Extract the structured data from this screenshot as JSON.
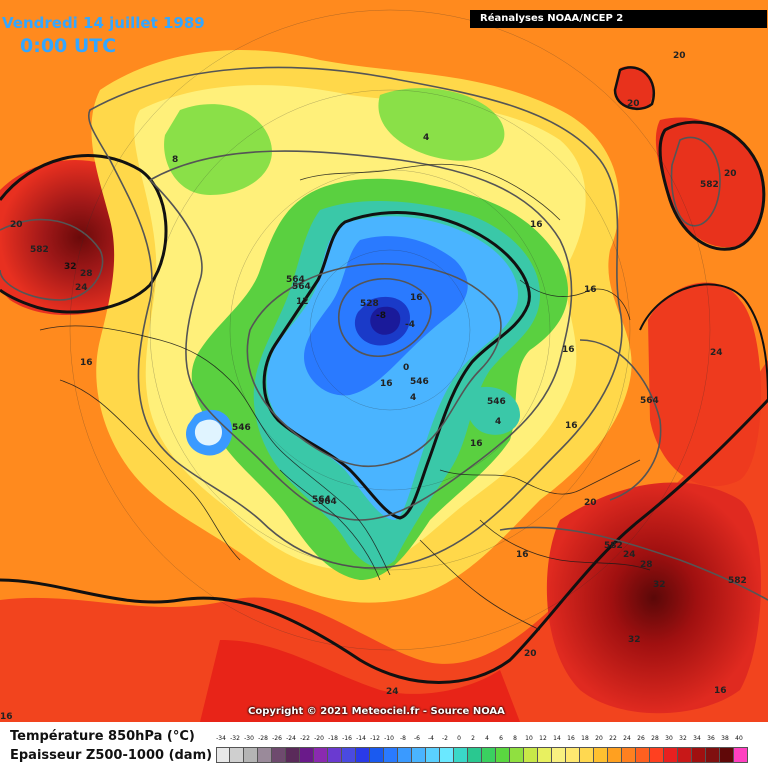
{
  "header": {
    "date": "Vendredi 14 juillet 1989",
    "time": "0:00 UTC",
    "source": "Réanalyses NOAA/NCEP 2"
  },
  "footer": {
    "copyright": "Copyright © 2021 Meteociel.fr - Source NOAA"
  },
  "legend": {
    "temperature_title": "Température 850hPa (°C)",
    "thickness_title": "Epaisseur Z500-1000 (dam)",
    "scale_values": [
      "-34",
      "-32",
      "-30",
      "-28",
      "-26",
      "-24",
      "-22",
      "-20",
      "-18",
      "-16",
      "-14",
      "-12",
      "-10",
      "-8",
      "-6",
      "-4",
      "-2",
      "0",
      "2",
      "4",
      "6",
      "8",
      "10",
      "12",
      "14",
      "16",
      "18",
      "20",
      "22",
      "24",
      "26",
      "28",
      "30",
      "32",
      "34",
      "36",
      "38",
      "40"
    ],
    "scale_colors": [
      "#e8e8e8",
      "#cfcfcf",
      "#b4b4b4",
      "#9a8a9a",
      "#6e4a6e",
      "#5a2a5a",
      "#6a1a8a",
      "#8a2ab0",
      "#6a3ad0",
      "#4a4ae0",
      "#2a3ae8",
      "#1a5af0",
      "#2a7aff",
      "#3a9aff",
      "#4ab4ff",
      "#5ad0ff",
      "#6ae8ff",
      "#3ad8c8",
      "#2ac890",
      "#3ad060",
      "#5ad840",
      "#90e040",
      "#c8e848",
      "#e8f060",
      "#f8f080",
      "#ffe870",
      "#ffd850",
      "#ffc030",
      "#ffa020",
      "#ff8020",
      "#ff6020",
      "#ff4020",
      "#e82020",
      "#c81818",
      "#a01010",
      "#801010",
      "#600808",
      "#ff40c0"
    ]
  },
  "map_labels": {
    "temps": [
      {
        "text": "20"
      },
      {
        "text": "20"
      },
      {
        "text": "20"
      },
      {
        "text": "20"
      },
      {
        "text": "8"
      },
      {
        "text": "4"
      },
      {
        "text": "16"
      },
      {
        "text": "16"
      },
      {
        "text": "16"
      },
      {
        "text": "16"
      },
      {
        "text": "24"
      },
      {
        "text": "32"
      },
      {
        "text": "28"
      },
      {
        "text": "24"
      },
      {
        "text": "12"
      },
      {
        "text": "16"
      },
      {
        "text": "-8"
      },
      {
        "text": "-4"
      },
      {
        "text": "0"
      },
      {
        "text": "4"
      },
      {
        "text": "4"
      },
      {
        "text": "16"
      },
      {
        "text": "20"
      },
      {
        "text": "24"
      },
      {
        "text": "28"
      },
      {
        "text": "32"
      },
      {
        "text": "32"
      },
      {
        "text": "20"
      },
      {
        "text": "24"
      },
      {
        "text": "16"
      },
      {
        "text": "16"
      },
      {
        "text": "16"
      },
      {
        "text": "16"
      },
      {
        "text": "16"
      }
    ],
    "thickness": [
      {
        "text": "582"
      },
      {
        "text": "582"
      },
      {
        "text": "564"
      },
      {
        "text": "528"
      },
      {
        "text": "546"
      },
      {
        "text": "546"
      },
      {
        "text": "546"
      },
      {
        "text": "564"
      },
      {
        "text": "564"
      },
      {
        "text": "582"
      },
      {
        "text": "582"
      },
      {
        "text": "564"
      },
      {
        "text": "564"
      }
    ]
  }
}
